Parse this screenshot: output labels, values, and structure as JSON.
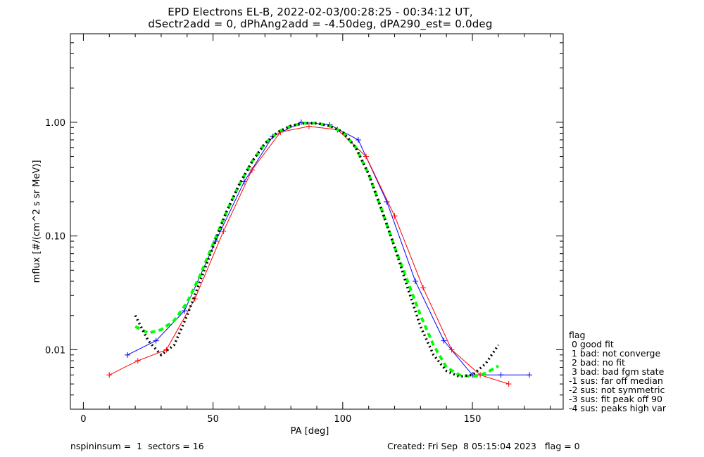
{
  "title_line1": "EPD Electrons EL-B, 2022-02-03/00:28:25 - 00:34:12 UT,",
  "title_line2": "dSectr2add = 0, dPhAng2add = -4.50deg, dPA290_est=   0.0deg",
  "footer_left": "nspininsum =  1  sectors = 16",
  "footer_right": "Created: Fri Sep  8 05:15:04 2023   flag = 0",
  "legend": {
    "title": "flag",
    "items": [
      " 0 good fit",
      " 1 bad: not converge",
      " 2 bad: no fit",
      " 3 bad: bad fgm state",
      "-1 sus: far off median",
      "-2 sus: not symmetric",
      "-3 sus: fit peak off 90",
      "-4 sus: peaks high var"
    ]
  },
  "colors": {
    "red": "#ff0000",
    "blue": "#0000ff",
    "green": "#00ff00",
    "black": "#000000"
  },
  "chart_data": {
    "type": "line",
    "xlabel": "PA [deg]",
    "ylabel": "mflux [#/(cm^2 s sr MeV)]",
    "xlim": [
      -5,
      185
    ],
    "ylim": [
      0.003,
      6.0
    ],
    "yscale": "log",
    "xticks": [
      0,
      50,
      100,
      150
    ],
    "xtick_labels": [
      "0",
      "50",
      "100",
      "150"
    ],
    "yticks": [
      0.01,
      0.1,
      1.0
    ],
    "ytick_labels": [
      "0.01",
      "0.10",
      "1.00"
    ],
    "grid": false,
    "series": [
      {
        "color": "blue",
        "style": "line+plus",
        "x": [
          17,
          28,
          39,
          51,
          62,
          73,
          84,
          95,
          106,
          117,
          128,
          139,
          150,
          161,
          172
        ],
        "y": [
          0.009,
          0.012,
          0.022,
          0.09,
          0.3,
          0.75,
          1.0,
          0.95,
          0.7,
          0.2,
          0.04,
          0.012,
          0.006,
          0.006,
          0.006
        ]
      },
      {
        "color": "red",
        "style": "line+plus",
        "x": [
          10,
          21,
          32,
          43,
          54,
          65,
          76,
          87,
          98,
          109,
          120,
          131,
          142,
          153,
          164
        ],
        "y": [
          0.006,
          0.008,
          0.01,
          0.028,
          0.11,
          0.38,
          0.82,
          0.92,
          0.86,
          0.5,
          0.15,
          0.035,
          0.01,
          0.006,
          0.005
        ]
      },
      {
        "color": "green",
        "style": "dashed-fit",
        "x": [
          20,
          25,
          30,
          35,
          40,
          45,
          50,
          55,
          60,
          65,
          70,
          75,
          80,
          85,
          90,
          95,
          100,
          105,
          110,
          115,
          120,
          125,
          130,
          135,
          140,
          145,
          150,
          155,
          160
        ],
        "y": [
          0.016,
          0.014,
          0.015,
          0.018,
          0.026,
          0.045,
          0.085,
          0.16,
          0.28,
          0.45,
          0.65,
          0.82,
          0.93,
          0.98,
          0.98,
          0.93,
          0.82,
          0.6,
          0.35,
          0.17,
          0.08,
          0.04,
          0.02,
          0.011,
          0.007,
          0.006,
          0.0058,
          0.0062,
          0.0072
        ]
      },
      {
        "color": "black",
        "style": "dotted-fit",
        "x": [
          20,
          25,
          30,
          35,
          40,
          45,
          50,
          55,
          60,
          65,
          70,
          75,
          80,
          85,
          90,
          95,
          100,
          105,
          110,
          115,
          120,
          125,
          130,
          135,
          140,
          145,
          150,
          155,
          160
        ],
        "y": [
          0.02,
          0.012,
          0.009,
          0.011,
          0.02,
          0.04,
          0.08,
          0.16,
          0.28,
          0.45,
          0.65,
          0.82,
          0.93,
          0.98,
          0.98,
          0.93,
          0.82,
          0.6,
          0.35,
          0.17,
          0.08,
          0.035,
          0.016,
          0.009,
          0.0065,
          0.0058,
          0.006,
          0.0075,
          0.011
        ]
      }
    ]
  }
}
